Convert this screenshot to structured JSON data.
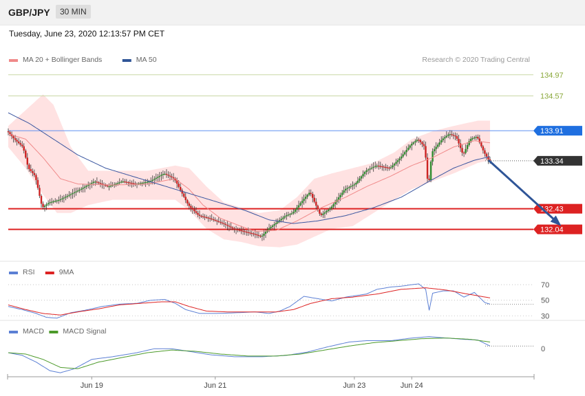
{
  "header": {
    "symbol": "GBP/JPY",
    "timeframe": "30 MIN",
    "datetime": "Tuesday, June 23, 2020 12:13:57 PM CET"
  },
  "chart_data": [
    {
      "panel": "price",
      "type": "candlestick",
      "legend": [
        {
          "label": "MA 20 + Bollinger Bands",
          "color": "#f08a8a"
        },
        {
          "label": "MA 50",
          "color": "#2f5597"
        }
      ],
      "legend_placement": "top-left",
      "credit": "Research © 2020 Trading Central",
      "ylim": [
        131.5,
        135.15
      ],
      "levels": [
        {
          "value": 134.97,
          "label": "134.97",
          "color": "#8aa83a",
          "style": "resistance-target"
        },
        {
          "value": 134.57,
          "label": "134.57",
          "color": "#8aa83a",
          "style": "resistance-target"
        },
        {
          "value": 133.91,
          "label": "133.91",
          "color": "#1f6fe0",
          "style": "pivot"
        },
        {
          "value": 133.34,
          "label": "133.34",
          "color": "#333333",
          "style": "last-price"
        },
        {
          "value": 132.43,
          "label": "132.43",
          "color": "#dd2222",
          "style": "support"
        },
        {
          "value": 132.04,
          "label": "132.04",
          "color": "#dd2222",
          "style": "support"
        }
      ],
      "bull_color": "#2e8b2e",
      "bear_color": "#cc2222",
      "path": [
        [
          0,
          133.9
        ],
        [
          4,
          133.75
        ],
        [
          9,
          133.6
        ],
        [
          12,
          133.2
        ],
        [
          16,
          133.05
        ],
        [
          20,
          132.45
        ],
        [
          24,
          132.55
        ],
        [
          30,
          132.6
        ],
        [
          36,
          132.7
        ],
        [
          42,
          132.8
        ],
        [
          50,
          132.95
        ],
        [
          58,
          132.85
        ],
        [
          66,
          132.95
        ],
        [
          74,
          132.9
        ],
        [
          82,
          132.95
        ],
        [
          90,
          133.1
        ],
        [
          96,
          133.0
        ],
        [
          104,
          132.5
        ],
        [
          110,
          132.3
        ],
        [
          116,
          132.25
        ],
        [
          124,
          132.15
        ],
        [
          130,
          132.05
        ],
        [
          136,
          132.0
        ],
        [
          142,
          131.95
        ],
        [
          146,
          131.9
        ],
        [
          150,
          132.05
        ],
        [
          156,
          132.2
        ],
        [
          160,
          132.3
        ],
        [
          164,
          132.35
        ],
        [
          170,
          132.6
        ],
        [
          174,
          132.75
        ],
        [
          180,
          132.3
        ],
        [
          186,
          132.45
        ],
        [
          194,
          132.8
        ],
        [
          200,
          132.9
        ],
        [
          206,
          133.15
        ],
        [
          212,
          133.25
        ],
        [
          220,
          133.2
        ],
        [
          226,
          133.4
        ],
        [
          232,
          133.65
        ],
        [
          236,
          133.75
        ],
        [
          240,
          133.6
        ],
        [
          242,
          132.8
        ],
        [
          244,
          133.5
        ],
        [
          250,
          133.75
        ],
        [
          254,
          133.85
        ],
        [
          258,
          133.8
        ],
        [
          262,
          133.45
        ],
        [
          266,
          133.75
        ],
        [
          270,
          133.8
        ],
        [
          274,
          133.5
        ],
        [
          277,
          133.34
        ]
      ],
      "ma20_path": [
        [
          0,
          133.85
        ],
        [
          10,
          133.75
        ],
        [
          20,
          133.4
        ],
        [
          30,
          133.0
        ],
        [
          40,
          132.9
        ],
        [
          60,
          132.88
        ],
        [
          80,
          132.9
        ],
        [
          96,
          133.0
        ],
        [
          104,
          132.8
        ],
        [
          112,
          132.5
        ],
        [
          122,
          132.25
        ],
        [
          132,
          132.12
        ],
        [
          142,
          132.0
        ],
        [
          154,
          132.02
        ],
        [
          166,
          132.2
        ],
        [
          180,
          132.45
        ],
        [
          194,
          132.65
        ],
        [
          206,
          132.85
        ],
        [
          220,
          133.05
        ],
        [
          232,
          133.25
        ],
        [
          244,
          133.4
        ],
        [
          256,
          133.6
        ],
        [
          268,
          133.72
        ],
        [
          277,
          133.68
        ]
      ],
      "ma50_path": [
        [
          0,
          134.25
        ],
        [
          12,
          134.05
        ],
        [
          26,
          133.75
        ],
        [
          40,
          133.45
        ],
        [
          56,
          133.2
        ],
        [
          76,
          133.0
        ],
        [
          96,
          132.8
        ],
        [
          116,
          132.6
        ],
        [
          136,
          132.4
        ],
        [
          150,
          132.22
        ],
        [
          164,
          132.15
        ],
        [
          178,
          132.2
        ],
        [
          194,
          132.3
        ],
        [
          210,
          132.45
        ],
        [
          226,
          132.65
        ],
        [
          242,
          132.95
        ],
        [
          256,
          133.2
        ],
        [
          268,
          133.35
        ],
        [
          277,
          133.42
        ]
      ],
      "bb_upper_path": [
        [
          0,
          134.0
        ],
        [
          10,
          134.3
        ],
        [
          20,
          134.6
        ],
        [
          26,
          134.4
        ],
        [
          36,
          133.6
        ],
        [
          46,
          133.15
        ],
        [
          60,
          133.15
        ],
        [
          80,
          133.15
        ],
        [
          96,
          133.25
        ],
        [
          104,
          133.2
        ],
        [
          114,
          132.85
        ],
        [
          124,
          132.55
        ],
        [
          134,
          132.45
        ],
        [
          144,
          132.35
        ],
        [
          156,
          132.4
        ],
        [
          166,
          132.65
        ],
        [
          176,
          133.0
        ],
        [
          186,
          133.1
        ],
        [
          198,
          133.2
        ],
        [
          210,
          133.3
        ],
        [
          222,
          133.5
        ],
        [
          232,
          133.75
        ],
        [
          244,
          133.9
        ],
        [
          256,
          134.0
        ],
        [
          270,
          134.1
        ],
        [
          277,
          134.1
        ]
      ],
      "bb_lower_path": [
        [
          0,
          133.6
        ],
        [
          10,
          133.2
        ],
        [
          20,
          132.7
        ],
        [
          28,
          132.35
        ],
        [
          36,
          132.35
        ],
        [
          46,
          132.5
        ],
        [
          60,
          132.6
        ],
        [
          80,
          132.6
        ],
        [
          96,
          132.6
        ],
        [
          104,
          132.4
        ],
        [
          114,
          132.05
        ],
        [
          124,
          131.85
        ],
        [
          134,
          131.8
        ],
        [
          144,
          131.72
        ],
        [
          156,
          131.7
        ],
        [
          166,
          131.75
        ],
        [
          176,
          131.9
        ],
        [
          186,
          132.05
        ],
        [
          198,
          132.1
        ],
        [
          210,
          132.35
        ],
        [
          222,
          132.6
        ],
        [
          232,
          132.8
        ],
        [
          244,
          132.95
        ],
        [
          256,
          133.1
        ],
        [
          270,
          133.3
        ],
        [
          277,
          133.35
        ]
      ],
      "projection": {
        "from": [
          277,
          133.35
        ],
        "to": [
          297,
          132.06
        ],
        "color": "#2f5597"
      }
    },
    {
      "panel": "rsi",
      "type": "line",
      "legend": [
        {
          "label": "RSI",
          "color": "#5b7fd4"
        },
        {
          "label": "9MA",
          "color": "#dd2222"
        }
      ],
      "ylim": [
        25,
        78
      ],
      "ticks": [
        {
          "value": 70,
          "label": "70"
        },
        {
          "value": 50,
          "label": "50"
        },
        {
          "value": 30,
          "label": "30"
        }
      ],
      "series": [
        {
          "name": "RSI",
          "color": "#5b7fd4",
          "path": [
            [
              0,
              42
            ],
            [
              8,
              38
            ],
            [
              16,
              33
            ],
            [
              22,
              28
            ],
            [
              28,
              27
            ],
            [
              36,
              34
            ],
            [
              44,
              37
            ],
            [
              54,
              42
            ],
            [
              64,
              45
            ],
            [
              74,
              46
            ],
            [
              82,
              50
            ],
            [
              90,
              51
            ],
            [
              96,
              46
            ],
            [
              102,
              38
            ],
            [
              110,
              33
            ],
            [
              120,
              33
            ],
            [
              132,
              34
            ],
            [
              142,
              35
            ],
            [
              150,
              33
            ],
            [
              156,
              36
            ],
            [
              162,
              42
            ],
            [
              170,
              55
            ],
            [
              178,
              52
            ],
            [
              186,
              49
            ],
            [
              194,
              54
            ],
            [
              200,
              56
            ],
            [
              206,
              58
            ],
            [
              212,
              64
            ],
            [
              220,
              67
            ],
            [
              226,
              68
            ],
            [
              232,
              70
            ],
            [
              236,
              71
            ],
            [
              240,
              64
            ],
            [
              242,
              37
            ],
            [
              244,
              59
            ],
            [
              250,
              62
            ],
            [
              256,
              62
            ],
            [
              262,
              54
            ],
            [
              268,
              60
            ],
            [
              274,
              47
            ],
            [
              277,
              45
            ]
          ]
        },
        {
          "name": "9MA",
          "color": "#dd2222",
          "path": [
            [
              0,
              44
            ],
            [
              10,
              38
            ],
            [
              20,
              33
            ],
            [
              30,
              31
            ],
            [
              40,
              35
            ],
            [
              52,
              39
            ],
            [
              64,
              44
            ],
            [
              76,
              46
            ],
            [
              88,
              48
            ],
            [
              96,
              48
            ],
            [
              104,
              42
            ],
            [
              114,
              36
            ],
            [
              126,
              35
            ],
            [
              140,
              35
            ],
            [
              154,
              35
            ],
            [
              164,
              38
            ],
            [
              174,
              46
            ],
            [
              186,
              52
            ],
            [
              198,
              54
            ],
            [
              212,
              58
            ],
            [
              226,
              64
            ],
            [
              240,
              66
            ],
            [
              252,
              63
            ],
            [
              264,
              58
            ],
            [
              277,
              53
            ]
          ]
        }
      ]
    },
    {
      "panel": "macd",
      "type": "line",
      "legend": [
        {
          "label": "MACD",
          "color": "#5b7fd4"
        },
        {
          "label": "MACD Signal",
          "color": "#4c9a2a"
        }
      ],
      "ylim": [
        -0.42,
        0.28
      ],
      "ticks": [
        {
          "value": 0,
          "label": "0"
        }
      ],
      "series": [
        {
          "name": "MACD",
          "color": "#5b7fd4",
          "path": [
            [
              0,
              -0.06
            ],
            [
              8,
              -0.1
            ],
            [
              16,
              -0.2
            ],
            [
              24,
              -0.33
            ],
            [
              30,
              -0.36
            ],
            [
              38,
              -0.3
            ],
            [
              48,
              -0.16
            ],
            [
              60,
              -0.12
            ],
            [
              74,
              -0.06
            ],
            [
              84,
              0.0
            ],
            [
              94,
              0.0
            ],
            [
              104,
              -0.04
            ],
            [
              116,
              -0.09
            ],
            [
              130,
              -0.12
            ],
            [
              146,
              -0.12
            ],
            [
              160,
              -0.1
            ],
            [
              172,
              -0.05
            ],
            [
              184,
              0.03
            ],
            [
              196,
              0.1
            ],
            [
              206,
              0.12
            ],
            [
              220,
              0.12
            ],
            [
              232,
              0.16
            ],
            [
              242,
              0.18
            ],
            [
              252,
              0.16
            ],
            [
              262,
              0.14
            ],
            [
              270,
              0.13
            ],
            [
              277,
              0.04
            ]
          ]
        },
        {
          "name": "MACD Signal",
          "color": "#4c9a2a",
          "path": [
            [
              0,
              -0.06
            ],
            [
              10,
              -0.08
            ],
            [
              20,
              -0.16
            ],
            [
              30,
              -0.28
            ],
            [
              40,
              -0.3
            ],
            [
              52,
              -0.2
            ],
            [
              66,
              -0.13
            ],
            [
              80,
              -0.06
            ],
            [
              94,
              -0.02
            ],
            [
              108,
              -0.04
            ],
            [
              122,
              -0.08
            ],
            [
              138,
              -0.11
            ],
            [
              154,
              -0.11
            ],
            [
              168,
              -0.08
            ],
            [
              182,
              -0.02
            ],
            [
              196,
              0.04
            ],
            [
              210,
              0.09
            ],
            [
              224,
              0.12
            ],
            [
              238,
              0.15
            ],
            [
              252,
              0.16
            ],
            [
              266,
              0.14
            ],
            [
              277,
              0.1
            ]
          ]
        }
      ]
    }
  ],
  "x_axis": {
    "ticks": [
      {
        "bar": 48,
        "label": "Jun 19"
      },
      {
        "bar": 119,
        "label": "Jun 21"
      },
      {
        "bar": 199,
        "label": "Jun 23"
      },
      {
        "bar": 232,
        "label": "Jun 24"
      }
    ]
  }
}
